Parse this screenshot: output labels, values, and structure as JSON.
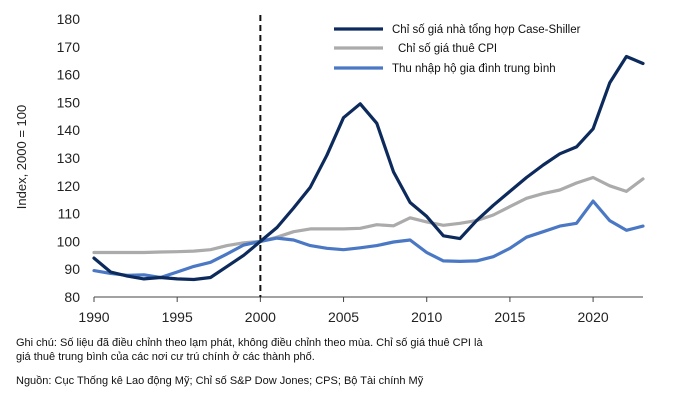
{
  "chart_data": {
    "type": "line",
    "ylabel": "Index, 2000 = 100",
    "xlim": [
      1990,
      2023
    ],
    "ylim": [
      80,
      180
    ],
    "x_ticks": [
      "1990",
      "1995",
      "2000",
      "2005",
      "2010",
      "2015",
      "2020"
    ],
    "y_ticks": [
      "80",
      "90",
      "100",
      "110",
      "120",
      "130",
      "140",
      "150",
      "160",
      "170",
      "180"
    ],
    "x_tick_values": [
      1990,
      1995,
      2000,
      2005,
      2010,
      2015,
      2020
    ],
    "y_tick_values": [
      80,
      90,
      100,
      110,
      120,
      130,
      140,
      150,
      160,
      170,
      180
    ],
    "vline_x": 2000,
    "legend_position": "top-right",
    "grid": false,
    "series": [
      {
        "name": "Chỉ số giá nhà tổng hợp Case-Shiller",
        "color": "#0d2a5c",
        "x": [
          1990,
          1991,
          1992,
          1993,
          1994,
          1995,
          1996,
          1997,
          1998,
          1999,
          2000,
          2001,
          2002,
          2003,
          2004,
          2005,
          2006,
          2007,
          2008,
          2009,
          2010,
          2011,
          2012,
          2013,
          2014,
          2015,
          2016,
          2017,
          2018,
          2019,
          2020,
          2021,
          2022,
          2023
        ],
        "y": [
          94,
          89,
          87.5,
          86.5,
          87,
          86.5,
          86.3,
          87,
          91,
          95,
          100,
          105,
          112,
          119.5,
          131,
          144.5,
          149.5,
          142.5,
          125,
          114,
          109,
          102,
          101,
          107.5,
          113,
          118,
          123,
          127.5,
          131.5,
          134,
          140.5,
          157,
          166.5,
          164
        ]
      },
      {
        "name": "Chỉ số giá thuê CPI",
        "color": "#ababab",
        "x": [
          1990,
          1991,
          1992,
          1993,
          1994,
          1995,
          1996,
          1997,
          1998,
          1999,
          2000,
          2001,
          2002,
          2003,
          2004,
          2005,
          2006,
          2007,
          2008,
          2009,
          2010,
          2011,
          2012,
          2013,
          2014,
          2015,
          2016,
          2017,
          2018,
          2019,
          2020,
          2021,
          2022,
          2023
        ],
        "y": [
          96,
          96,
          96,
          96,
          96.2,
          96.3,
          96.5,
          97,
          98.5,
          99.5,
          100,
          101.5,
          103.5,
          104.5,
          104.5,
          104.5,
          104.7,
          106,
          105.6,
          108.5,
          107,
          105.8,
          106.5,
          107.5,
          109.5,
          112.5,
          115.5,
          117.2,
          118.5,
          121,
          123,
          120,
          118,
          122.5
        ]
      },
      {
        "name": "Thu nhập hộ gia đình trung bình",
        "color": "#4a78c4",
        "x": [
          1990,
          1991,
          1992,
          1993,
          1994,
          1995,
          1996,
          1997,
          1998,
          1999,
          2000,
          2001,
          2002,
          2003,
          2004,
          2005,
          2006,
          2007,
          2008,
          2009,
          2010,
          2011,
          2012,
          2013,
          2014,
          2015,
          2016,
          2017,
          2018,
          2019,
          2020,
          2021,
          2022,
          2023
        ],
        "y": [
          89.5,
          88.5,
          87.8,
          88,
          87,
          89,
          91,
          92.5,
          95.5,
          98.7,
          100,
          101.2,
          100.5,
          98.5,
          97.5,
          97,
          97.7,
          98.5,
          99.8,
          100.5,
          96,
          93,
          92.8,
          93,
          94.5,
          97.5,
          101.5,
          103.5,
          105.5,
          106.5,
          114.5,
          107.5,
          104,
          105.5
        ]
      }
    ]
  },
  "notes": {
    "line1": "Ghi chú: Số liệu đã điều chỉnh theo lạm phát, không điều chỉnh theo mùa. Chỉ số giá thuê CPI là",
    "line2": "giá thuê trung bình của các nơi cư trú chính ở các thành phố.",
    "source": "Nguồn: Cục Thống kê Lao động Mỹ; Chỉ số S&P Dow Jones; CPS; Bộ Tài chính Mỹ"
  }
}
